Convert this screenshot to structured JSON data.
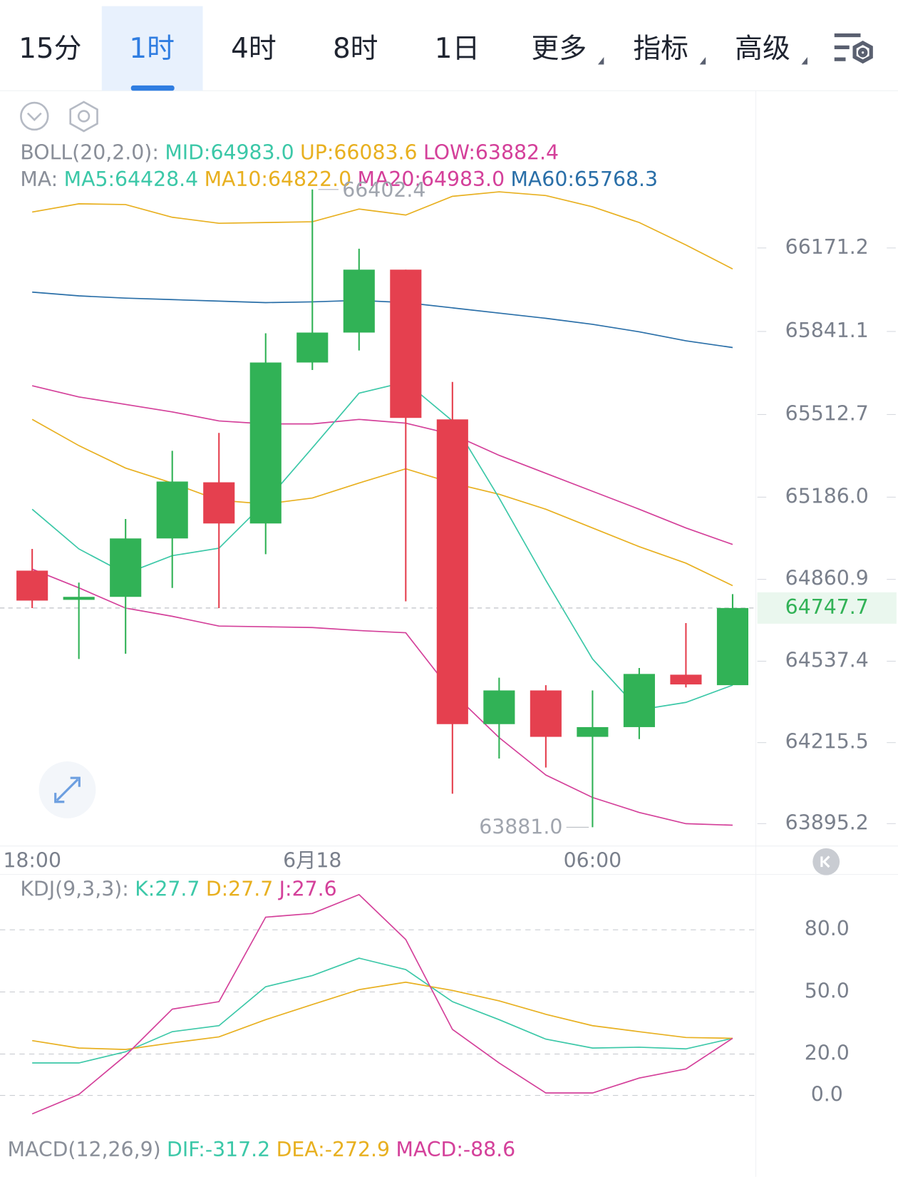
{
  "tabs": {
    "active": 1,
    "items": [
      {
        "label": "15分",
        "dropdown": false
      },
      {
        "label": "1时",
        "dropdown": false
      },
      {
        "label": "4时",
        "dropdown": false
      },
      {
        "label": "8时",
        "dropdown": false
      },
      {
        "label": "1日",
        "dropdown": false
      },
      {
        "label": "更多",
        "dropdown": true
      },
      {
        "label": "指标",
        "dropdown": true
      },
      {
        "label": "高级",
        "dropdown": true
      }
    ]
  },
  "chart_data": [
    {
      "type": "candlestick",
      "categories": [
        "18:00",
        null,
        null,
        null,
        null,
        null,
        "6月18",
        null,
        null,
        null,
        null,
        null,
        "06:00",
        null,
        null,
        null
      ],
      "open": [
        64895.4,
        64780.0,
        64791.8,
        65022.7,
        65244.7,
        65081.9,
        65718.3,
        65836.7,
        66085.4,
        65493.4,
        64288.6,
        64421.8,
        64238.3,
        64276.8,
        64484.0,
        64442.6
      ],
      "high": [
        64981.3,
        64848.0,
        65099.7,
        65369.0,
        65440.1,
        65833.8,
        66402.4,
        66168.2,
        66085.4,
        65641.4,
        64472.2,
        64442.6,
        64421.8,
        64510.6,
        64688.2,
        64802.6
      ],
      "low": [
        64747.4,
        64546.0,
        64566.9,
        64827.0,
        64747.4,
        64960.6,
        65688.7,
        65765.7,
        64774.1,
        64013.4,
        64152.5,
        64117.0,
        63881.0,
        64229.4,
        64433.7,
        64442.6
      ],
      "close": [
        64777.0,
        64791.8,
        65022.7,
        65247.7,
        65081.9,
        65718.3,
        65836.7,
        66085.4,
        65499.3,
        64288.6,
        64421.8,
        64238.3,
        64276.8,
        64487.0,
        64445.5,
        64747.7
      ],
      "up_color": "#31b256",
      "down_color": "#e5404f",
      "ylim": [
        63860,
        66420
      ],
      "yticks": [
        66171.2,
        65841.1,
        {
          "value": 65512.7,
          "label": "65512.7"
        },
        {
          "value": 65186.0,
          "label": "65186.0"
        },
        64860.9,
        64537.4,
        64215.5,
        63895.2
      ],
      "last_price": 64747.7,
      "high_label": "66402.4",
      "low_label": "63881.0",
      "legends": [
        {
          "items": [
            {
              "text": "BOLL(20,2.0):",
              "color": "#8a8f99"
            },
            {
              "text": "MID:64983.0",
              "color": "#3cc8a8"
            },
            {
              "text": "UP:66083.6",
              "color": "#e8b020"
            },
            {
              "text": "LOW:63882.4",
              "color": "#d4409a"
            }
          ]
        },
        {
          "items": [
            {
              "text": "MA:",
              "color": "#8a8f99"
            },
            {
              "text": "MA5:64428.4",
              "color": "#3cc8a8"
            },
            {
              "text": "MA10:64822.0",
              "color": "#e8b020"
            },
            {
              "text": "MA20:64983.0",
              "color": "#d4409a"
            },
            {
              "text": "MA60:65768.3",
              "color": "#2a6fa8"
            }
          ]
        }
      ],
      "series": [
        {
          "color": "#e8b020",
          "values": [
            66313.3,
            66345.8,
            66342.9,
            66292.6,
            66268.9,
            66271.8,
            66274.8,
            66325.1,
            66301.4,
            66375.4,
            66393.2,
            66378.4,
            66334.0,
            66271.8,
            66183.0,
            66088.3
          ]
        },
        {
          "color": "#d4409a",
          "values": [
            65626.6,
            65582.2,
            65552.6,
            65523.0,
            65487.4,
            65475.6,
            65475.6,
            65493.4,
            65478.6,
            65434.2,
            65351.3,
            65280.2,
            65209.2,
            65138.2,
            65064.2,
            64999.0
          ]
        },
        {
          "color": "#d4409a",
          "values": [
            64901.4,
            64827.4,
            64747.4,
            64714.9,
            64676.4,
            64673.4,
            64670.5,
            64658.6,
            64649.8,
            64413.0,
            64235.4,
            64087.4,
            63998.6,
            63939.4,
            63895.0,
            63889.0
          ]
        },
        {
          "color": "#e8b020",
          "values": [
            65493.4,
            65389.8,
            65301.0,
            65241.8,
            65173.7,
            65158.9,
            65182.6,
            65241.8,
            65298.0,
            65241.8,
            65197.4,
            65138.2,
            65064.2,
            64990.2,
            64925.0,
            64836.2
          ]
        },
        {
          "color": "#3cc8a8",
          "values": [
            65138.2,
            64981.3,
            64883.6,
            64954.6,
            64984.2,
            65167.8,
            65380.9,
            65597.0,
            65641.4,
            65487.4,
            65182.6,
            64857.0,
            64546.2,
            64344.9,
            64374.5,
            64442.6
          ]
        },
        {
          "color": "#2a6fa8",
          "values": [
            65996.6,
            65981.8,
            65972.9,
            65967.0,
            65961.0,
            65955.1,
            65958.1,
            65964.0,
            65955.1,
            65934.4,
            65913.7,
            65893.0,
            65869.3,
            65839.7,
            65804.2,
            65777.5
          ]
        }
      ]
    },
    {
      "type": "line",
      "ylim": [
        -18.7,
        104.2
      ],
      "yticks": [
        {
          "value": 80,
          "label": "80.0"
        },
        {
          "value": 50,
          "label": "50.0"
        },
        {
          "value": 20,
          "label": "20.0"
        },
        {
          "value": 0,
          "label": "0.0"
        }
      ],
      "grid": true,
      "legends": [
        {
          "items": [
            {
              "text": "KDJ(9,3,3):",
              "color": "#8a8f99"
            },
            {
              "text": "K:27.7",
              "color": "#3cc8a8"
            },
            {
              "text": "D:27.7",
              "color": "#e8b020"
            },
            {
              "text": "J:27.6",
              "color": "#d4409a"
            }
          ]
        }
      ],
      "series": [
        {
          "color": "#3cc8a8",
          "values": [
            15.7,
            15.7,
            21.1,
            30.8,
            33.7,
            52.5,
            57.9,
            66.3,
            60.8,
            45.3,
            36.6,
            27.2,
            22.9,
            23.3,
            22.5,
            27.6
          ]
        },
        {
          "color": "#e8b020",
          "values": [
            26.5,
            22.9,
            22.2,
            25.4,
            28.3,
            36.6,
            43.9,
            51.1,
            54.7,
            50.7,
            45.7,
            39.2,
            33.7,
            30.8,
            28.0,
            27.6
          ]
        },
        {
          "color": "#d4409a",
          "values": [
            -8.9,
            0.5,
            19.3,
            41.7,
            45.3,
            86.1,
            87.9,
            97.0,
            75.3,
            31.9,
            15.7,
            1.2,
            1.2,
            8.4,
            12.8,
            27.6
          ]
        }
      ]
    },
    {
      "type": "legend",
      "legends": [
        {
          "items": [
            {
              "text": "MACD(12,26,9)",
              "color": "#8a8f99"
            },
            {
              "text": "DIF:-317.2",
              "color": "#3cc8a8"
            },
            {
              "text": "DEA:-272.9",
              "color": "#e8b020"
            },
            {
              "text": "MACD:-88.6",
              "color": "#d4409a"
            }
          ]
        }
      ]
    }
  ]
}
